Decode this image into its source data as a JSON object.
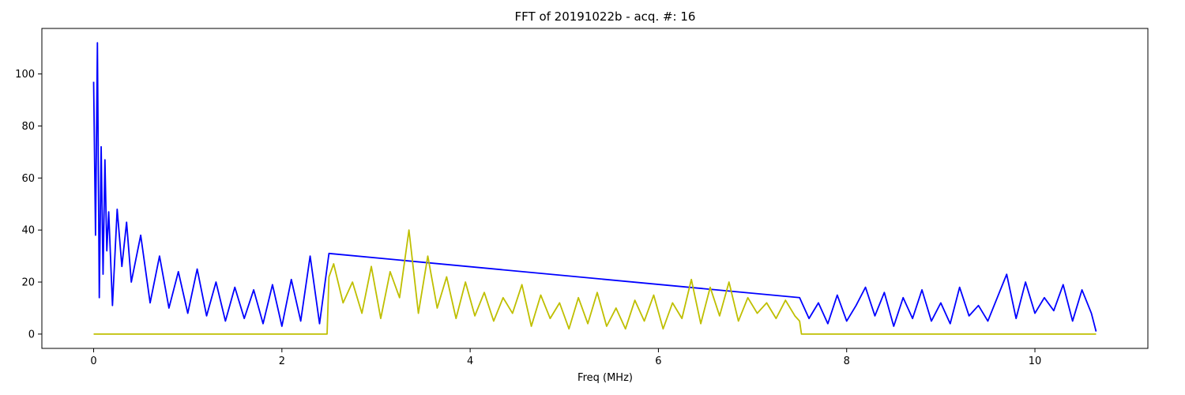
{
  "chart_data": {
    "type": "line",
    "title": "FFT of 20191022b - acq. #: 16",
    "xlabel": "Freq (MHz)",
    "ylabel": "",
    "xlim": [
      -0.55,
      11.2
    ],
    "ylim": [
      -5.5,
      117.5
    ],
    "xticks": [
      0,
      2,
      4,
      6,
      8,
      10
    ],
    "yticks": [
      0,
      20,
      40,
      60,
      80,
      100
    ],
    "grid": false,
    "legend": "none",
    "series": [
      {
        "color": "#0000ff",
        "x": [
          0.0,
          0.02,
          0.04,
          0.06,
          0.08,
          0.1,
          0.12,
          0.14,
          0.16,
          0.2,
          0.25,
          0.3,
          0.35,
          0.4,
          0.5,
          0.6,
          0.7,
          0.8,
          0.9,
          1.0,
          1.1,
          1.2,
          1.3,
          1.4,
          1.5,
          1.6,
          1.7,
          1.8,
          1.9,
          2.0,
          2.1,
          2.2,
          2.3,
          2.4,
          2.5,
          7.5,
          7.6,
          7.7,
          7.8,
          7.9,
          8.0,
          8.1,
          8.2,
          8.3,
          8.4,
          8.5,
          8.6,
          8.7,
          8.8,
          8.9,
          9.0,
          9.1,
          9.2,
          9.3,
          9.4,
          9.5,
          9.6,
          9.7,
          9.8,
          9.9,
          10.0,
          10.1,
          10.2,
          10.3,
          10.4,
          10.5,
          10.6,
          10.65
        ],
        "y": [
          97,
          38,
          112,
          14,
          72,
          23,
          67,
          32,
          47,
          11,
          48,
          26,
          43,
          20,
          38,
          12,
          30,
          10,
          24,
          8,
          25,
          7,
          20,
          5,
          18,
          6,
          17,
          4,
          19,
          3,
          21,
          5,
          30,
          4,
          31,
          14,
          6,
          12,
          4,
          15,
          5,
          11,
          18,
          7,
          16,
          3,
          14,
          6,
          17,
          5,
          12,
          4,
          18,
          7,
          11,
          5,
          14,
          23,
          6,
          20,
          8,
          14,
          9,
          19,
          5,
          17,
          8,
          1
        ]
      },
      {
        "color": "#bfbf00",
        "x": [
          0.0,
          2.48,
          2.5,
          2.55,
          2.65,
          2.75,
          2.85,
          2.95,
          3.05,
          3.15,
          3.25,
          3.35,
          3.45,
          3.55,
          3.65,
          3.75,
          3.85,
          3.95,
          4.05,
          4.15,
          4.25,
          4.35,
          4.45,
          4.55,
          4.65,
          4.75,
          4.85,
          4.95,
          5.05,
          5.15,
          5.25,
          5.35,
          5.45,
          5.55,
          5.65,
          5.75,
          5.85,
          5.95,
          6.05,
          6.15,
          6.25,
          6.35,
          6.45,
          6.55,
          6.65,
          6.75,
          6.85,
          6.95,
          7.05,
          7.15,
          7.25,
          7.35,
          7.45,
          7.5,
          7.52,
          10.65
        ],
        "y": [
          0,
          0,
          22,
          27,
          12,
          20,
          8,
          26,
          6,
          24,
          14,
          40,
          8,
          30,
          10,
          22,
          6,
          20,
          7,
          16,
          5,
          14,
          8,
          19,
          3,
          15,
          6,
          12,
          2,
          14,
          4,
          16,
          3,
          10,
          2,
          13,
          5,
          15,
          2,
          12,
          6,
          21,
          4,
          18,
          7,
          20,
          5,
          14,
          8,
          12,
          6,
          13,
          7,
          5,
          0,
          0
        ]
      }
    ]
  }
}
